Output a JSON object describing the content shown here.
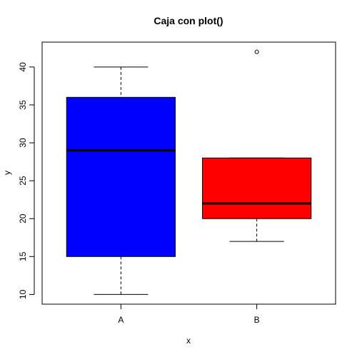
{
  "chart_data": {
    "type": "boxplot",
    "title": "Caja con plot()",
    "xlabel": "x",
    "ylabel": "y",
    "categories": [
      "A",
      "B"
    ],
    "yticks": [
      10,
      15,
      20,
      25,
      30,
      35,
      40
    ],
    "ylim": [
      8.72,
      43.28
    ],
    "boxes": [
      {
        "category": "A",
        "min": 10,
        "q1": 15,
        "median": 29,
        "q3": 36,
        "max": 40,
        "outliers": [],
        "color": "#0000ff"
      },
      {
        "category": "B",
        "min": 17,
        "q1": 20,
        "median": 22,
        "q3": 28,
        "max": 28,
        "outliers": [
          42
        ],
        "color": "#ff0000"
      }
    ],
    "grid": false,
    "legend": "none"
  }
}
